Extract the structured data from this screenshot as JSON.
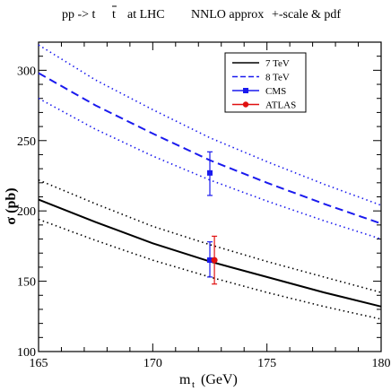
{
  "chart_data": {
    "type": "line",
    "title_parts": {
      "process": "pp -> t",
      "bar_char": "t",
      "at": "at  LHC",
      "order": "NNLO approx",
      "uncertainty": "+-scale & pdf"
    },
    "xlabel_main": "m",
    "xlabel_sub": "t",
    "xlabel_unit": "(GeV)",
    "ylabel": "σ (pb)",
    "xlim": [
      165,
      180
    ],
    "ylim": [
      100,
      320
    ],
    "xticks": [
      165,
      170,
      175,
      180
    ],
    "yticks": [
      100,
      150,
      200,
      250,
      300
    ],
    "x": [
      165,
      167.5,
      170,
      172.5,
      175,
      177.5,
      180
    ],
    "series": [
      {
        "name": "7 TeV",
        "color": "#000000",
        "dash": "solid",
        "values": [
          208,
          192,
          177,
          164,
          153,
          142,
          132
        ]
      },
      {
        "name": "7 TeV upper",
        "color": "#000000",
        "dash": "dotted",
        "values": [
          222,
          205,
          189,
          176,
          164,
          153,
          142
        ]
      },
      {
        "name": "7 TeV lower",
        "color": "#000000",
        "dash": "dotted",
        "values": [
          194,
          179,
          165,
          153,
          142,
          132,
          123
        ]
      },
      {
        "name": "8 TeV",
        "color": "#1a1aee",
        "dash": "dashed",
        "values": [
          298,
          275,
          255,
          236,
          220,
          205,
          191
        ]
      },
      {
        "name": "8 TeV upper",
        "color": "#1a1aee",
        "dash": "dotted",
        "values": [
          318,
          293,
          272,
          252,
          235,
          219,
          204
        ]
      },
      {
        "name": "8 TeV lower",
        "color": "#1a1aee",
        "dash": "dotted",
        "values": [
          280,
          258,
          239,
          222,
          207,
          193,
          180
        ]
      }
    ],
    "points": [
      {
        "name": "CMS",
        "color": "#1a1aee",
        "marker": "square",
        "x": 172.5,
        "y": 227,
        "yerr_low": 211,
        "yerr_high": 242
      },
      {
        "name": "CMS",
        "color": "#1a1aee",
        "marker": "square",
        "x": 172.5,
        "y": 165,
        "yerr_low": 153,
        "yerr_high": 178
      },
      {
        "name": "ATLAS",
        "color": "#e01010",
        "marker": "circle",
        "x": 172.7,
        "y": 165,
        "yerr_low": 148,
        "yerr_high": 182
      }
    ],
    "legend": {
      "placement": "top-right",
      "entries": [
        {
          "label": "7 TeV",
          "color": "#000000",
          "style": "solid"
        },
        {
          "label": "8 TeV",
          "color": "#1a1aee",
          "style": "dashed"
        },
        {
          "label": "CMS",
          "color": "#1a1aee",
          "style": "square"
        },
        {
          "label": "ATLAS",
          "color": "#e01010",
          "style": "circle"
        }
      ]
    }
  }
}
